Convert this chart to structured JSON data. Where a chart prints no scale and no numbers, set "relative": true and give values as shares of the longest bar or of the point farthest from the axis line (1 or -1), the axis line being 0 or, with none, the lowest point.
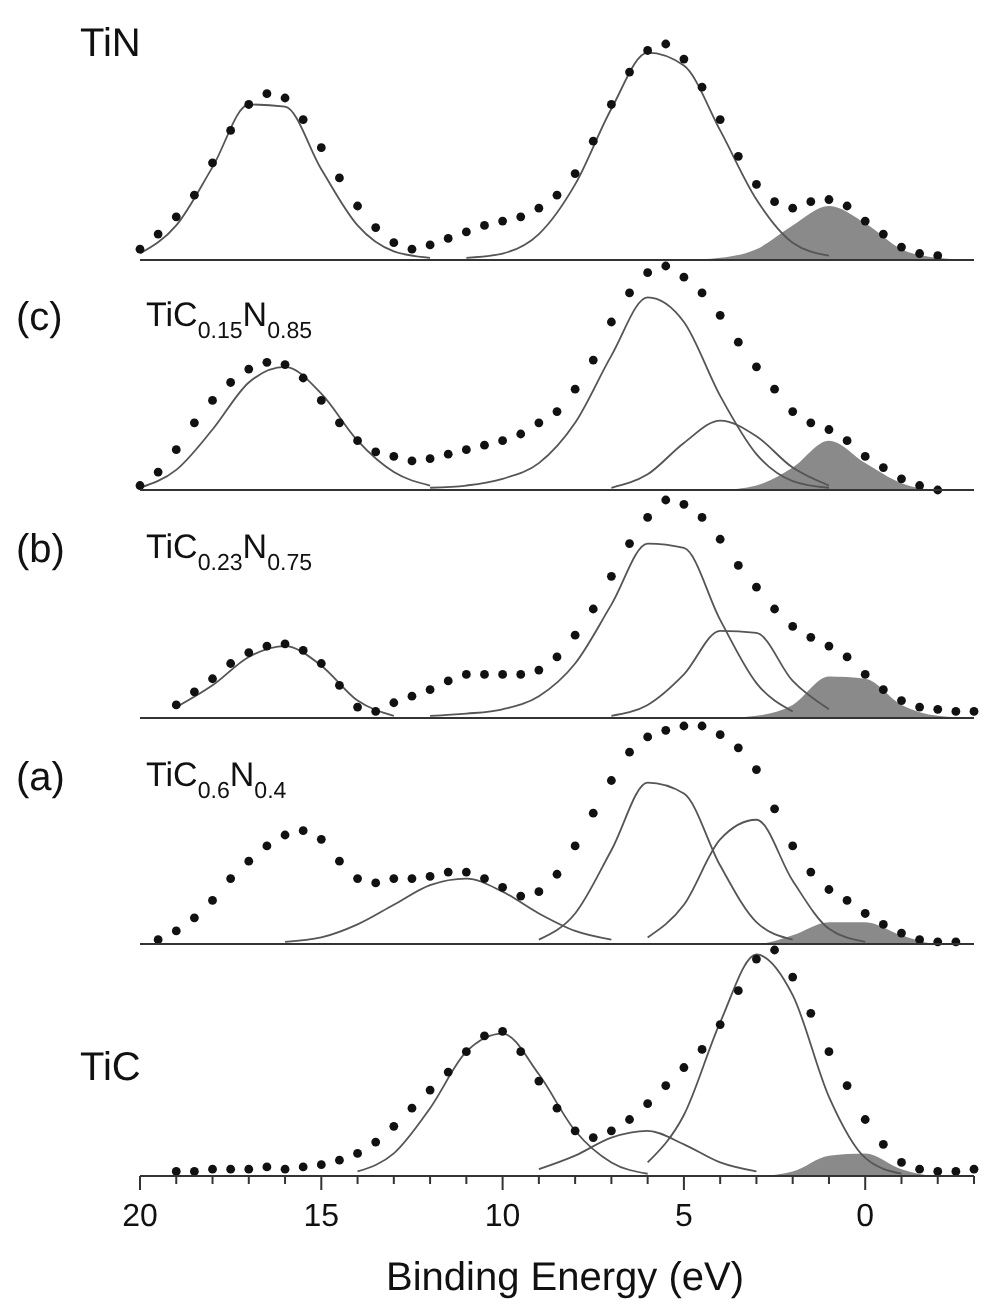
{
  "chart_data": [
    {
      "type": "line",
      "title": "TiN",
      "relative": true,
      "xlim": [
        20,
        -3
      ],
      "tick_labels": false,
      "x": [
        20,
        19,
        18,
        17,
        16,
        15,
        14,
        13,
        12,
        11,
        10,
        9,
        8,
        7,
        6,
        5,
        4,
        3,
        2,
        1,
        0,
        -1,
        -2,
        -3
      ],
      "series": [
        {
          "type": "area",
          "color": "#8a8a8a",
          "values": [
            0,
            0,
            0,
            0,
            0,
            0,
            0,
            0,
            0,
            0,
            0,
            0,
            0,
            0,
            0,
            0,
            0.01,
            0.05,
            0.16,
            0.25,
            0.17,
            0.05,
            0.01,
            0
          ]
        },
        {
          "type": "line",
          "color": "#555555",
          "values": [
            0.03,
            0.16,
            0.43,
            0.72,
            0.71,
            0.42,
            0.16,
            0.04,
            0.01,
            null,
            null,
            null,
            null,
            null,
            null,
            null,
            null,
            null,
            null,
            null,
            null,
            null,
            null,
            null
          ]
        },
        {
          "type": "line",
          "color": "#555555",
          "values": [
            null,
            null,
            null,
            null,
            null,
            null,
            null,
            null,
            null,
            0.01,
            0.03,
            0.12,
            0.35,
            0.7,
            0.96,
            0.9,
            0.6,
            0.28,
            0.08,
            0.02,
            null,
            null,
            null,
            null
          ]
        },
        {
          "type": "scatter",
          "color": "#111111",
          "marker": "circle",
          "x": [
            20,
            19.5,
            19,
            18.5,
            18,
            17.5,
            17,
            16.5,
            16,
            15.5,
            15,
            14.5,
            14,
            13.5,
            13,
            12.5,
            12,
            11.5,
            11,
            10.5,
            10,
            9.5,
            9,
            8.5,
            8,
            7.5,
            7,
            6.5,
            6,
            5.5,
            5,
            4.5,
            4,
            3.5,
            3,
            2.5,
            2,
            1.5,
            1,
            0.5,
            0,
            -0.5,
            -1,
            -1.5,
            -2
          ],
          "values": [
            0.05,
            0.12,
            0.2,
            0.3,
            0.45,
            0.6,
            0.72,
            0.77,
            0.75,
            0.65,
            0.52,
            0.38,
            0.25,
            0.15,
            0.08,
            0.05,
            0.07,
            0.1,
            0.13,
            0.16,
            0.18,
            0.2,
            0.24,
            0.3,
            0.4,
            0.55,
            0.72,
            0.87,
            0.97,
            1.0,
            0.93,
            0.8,
            0.65,
            0.48,
            0.35,
            0.27,
            0.24,
            0.27,
            0.28,
            0.25,
            0.18,
            0.12,
            0.06,
            0.03,
            0.02
          ]
        }
      ]
    },
    {
      "type": "line",
      "title": "(c)",
      "subtitle": "TiC$_{0.15}$N$_{0.85}$",
      "relative": true,
      "xlim": [
        20,
        -3
      ],
      "tick_labels": false,
      "x": [
        20,
        19,
        18,
        17,
        16,
        15,
        14,
        13,
        12,
        11,
        10,
        9,
        8,
        7,
        6,
        5,
        4,
        3,
        2,
        1,
        0,
        -1,
        -2,
        -3
      ],
      "series": [
        {
          "type": "area",
          "color": "#8a8a8a",
          "values": [
            0,
            0,
            0,
            0,
            0,
            0,
            0,
            0,
            0,
            0,
            0,
            0,
            0,
            0,
            0,
            0,
            0,
            0.02,
            0.1,
            0.22,
            0.12,
            0.03,
            0,
            0
          ]
        },
        {
          "type": "line",
          "color": "#555555",
          "values": [
            0.01,
            0.09,
            0.27,
            0.48,
            0.55,
            0.43,
            0.22,
            0.08,
            0.02,
            null,
            null,
            null,
            null,
            null,
            null,
            null,
            null,
            null,
            null,
            null,
            null,
            null,
            null,
            null
          ]
        },
        {
          "type": "line",
          "color": "#555555",
          "values": [
            null,
            null,
            null,
            null,
            null,
            null,
            null,
            null,
            0.01,
            0.02,
            0.05,
            0.12,
            0.3,
            0.6,
            0.86,
            0.75,
            0.42,
            0.16,
            0.04,
            0.01,
            null,
            null,
            null,
            null
          ]
        },
        {
          "type": "line",
          "color": "#555555",
          "values": [
            null,
            null,
            null,
            null,
            null,
            null,
            null,
            null,
            null,
            null,
            null,
            null,
            null,
            0.01,
            0.07,
            0.21,
            0.31,
            0.24,
            0.1,
            0.02,
            null,
            null,
            null,
            null
          ]
        },
        {
          "type": "scatter",
          "color": "#111111",
          "marker": "circle",
          "x": [
            20,
            19.5,
            19,
            18.5,
            18,
            17.5,
            17,
            16.5,
            16,
            15.5,
            15,
            14.5,
            14,
            13.5,
            13,
            12.5,
            12,
            11.5,
            11,
            10.5,
            10,
            9.5,
            9,
            8.5,
            8,
            7.5,
            7,
            6.5,
            6,
            5.5,
            5,
            4.5,
            4,
            3.5,
            3,
            2.5,
            2,
            1.5,
            1,
            0.5,
            0,
            -0.5,
            -1,
            -1.5,
            -2
          ],
          "values": [
            0.02,
            0.08,
            0.18,
            0.3,
            0.4,
            0.48,
            0.54,
            0.57,
            0.56,
            0.5,
            0.4,
            0.3,
            0.22,
            0.17,
            0.15,
            0.13,
            0.14,
            0.16,
            0.18,
            0.2,
            0.22,
            0.25,
            0.3,
            0.35,
            0.45,
            0.58,
            0.75,
            0.88,
            0.97,
            1.0,
            0.95,
            0.88,
            0.78,
            0.66,
            0.55,
            0.45,
            0.35,
            0.3,
            0.27,
            0.22,
            0.15,
            0.1,
            0.05,
            0.02,
            0.0
          ]
        }
      ]
    },
    {
      "type": "line",
      "title": "(b)",
      "subtitle": "TiC$_{0.23}$N$_{0.75}$",
      "relative": true,
      "xlim": [
        20,
        -3
      ],
      "tick_labels": false,
      "x": [
        20,
        19,
        18,
        17,
        16,
        15,
        14,
        13,
        12,
        11,
        10,
        9,
        8,
        7,
        6,
        5,
        4,
        3,
        2,
        1,
        0,
        -1,
        -2,
        -3
      ],
      "series": [
        {
          "type": "area",
          "color": "#8a8a8a",
          "values": [
            0,
            0,
            0,
            0,
            0,
            0,
            0,
            0,
            0,
            0,
            0,
            0,
            0,
            0,
            0,
            0,
            0,
            0.01,
            0.06,
            0.19,
            0.18,
            0.06,
            0.01,
            0
          ]
        },
        {
          "type": "line",
          "color": "#555555",
          "values": [
            null,
            0.05,
            0.15,
            0.28,
            0.33,
            0.24,
            0.08,
            0.01,
            null,
            null,
            null,
            null,
            null,
            null,
            null,
            null,
            null,
            null,
            null,
            null,
            null,
            null,
            null,
            null
          ]
        },
        {
          "type": "line",
          "color": "#555555",
          "values": [
            null,
            null,
            null,
            null,
            null,
            null,
            null,
            null,
            0.01,
            0.02,
            0.04,
            0.1,
            0.25,
            0.52,
            0.8,
            0.78,
            0.45,
            0.16,
            0.03,
            null,
            null,
            null,
            null,
            null
          ]
        },
        {
          "type": "line",
          "color": "#555555",
          "values": [
            null,
            null,
            null,
            null,
            null,
            null,
            null,
            null,
            null,
            null,
            null,
            null,
            null,
            0.01,
            0.06,
            0.2,
            0.4,
            0.39,
            0.17,
            0.04,
            null,
            null,
            null,
            null
          ]
        },
        {
          "type": "scatter",
          "color": "#111111",
          "marker": "circle",
          "x": [
            19,
            18.5,
            18,
            17.5,
            17,
            16.5,
            16,
            15.5,
            15,
            14.5,
            14,
            13.5,
            13,
            12.5,
            12,
            11.5,
            11,
            10.5,
            10,
            9.5,
            9,
            8.5,
            8,
            7.5,
            7,
            6.5,
            6,
            5.5,
            5,
            4.5,
            4,
            3.5,
            3,
            2.5,
            2,
            1.5,
            1,
            0.5,
            0,
            -0.5,
            -1,
            -1.5,
            -2,
            -2.5,
            -3
          ],
          "values": [
            0.06,
            0.12,
            0.18,
            0.25,
            0.3,
            0.33,
            0.34,
            0.31,
            0.25,
            0.15,
            0.05,
            0.03,
            0.07,
            0.1,
            0.13,
            0.17,
            0.2,
            0.2,
            0.2,
            0.2,
            0.22,
            0.28,
            0.38,
            0.5,
            0.65,
            0.8,
            0.92,
            1.0,
            0.98,
            0.92,
            0.82,
            0.7,
            0.6,
            0.5,
            0.42,
            0.37,
            0.33,
            0.28,
            0.2,
            0.13,
            0.08,
            0.05,
            0.04,
            0.03,
            0.03
          ]
        }
      ]
    },
    {
      "type": "line",
      "title": "(a)",
      "subtitle": "TiC$_{0.6}$N$_{0.4}$",
      "relative": true,
      "xlim": [
        20,
        -3
      ],
      "tick_labels": false,
      "x": [
        20,
        19,
        18,
        17,
        16,
        15,
        14,
        13,
        12,
        11,
        10,
        9,
        8,
        7,
        6,
        5,
        4,
        3,
        2,
        1,
        0,
        -1,
        -2,
        -3
      ],
      "series": [
        {
          "type": "area",
          "color": "#8a8a8a",
          "values": [
            0,
            0,
            0,
            0,
            0,
            0,
            0,
            0,
            0,
            0,
            0,
            0,
            0,
            0,
            0,
            0,
            0,
            0,
            0.04,
            0.1,
            0.1,
            0.04,
            0,
            0
          ]
        },
        {
          "type": "line",
          "color": "#555555",
          "values": [
            null,
            null,
            null,
            null,
            0.01,
            0.03,
            0.09,
            0.18,
            0.27,
            0.3,
            0.24,
            0.14,
            0.06,
            0.02,
            null,
            null,
            null,
            null,
            null,
            null,
            null,
            null,
            null,
            null
          ]
        },
        {
          "type": "line",
          "color": "#555555",
          "values": [
            null,
            null,
            null,
            null,
            null,
            null,
            null,
            null,
            null,
            null,
            null,
            0.02,
            0.14,
            0.43,
            0.74,
            0.69,
            0.36,
            0.1,
            0.02,
            null,
            null,
            null,
            null,
            null
          ]
        },
        {
          "type": "line",
          "color": "#555555",
          "values": [
            null,
            null,
            null,
            null,
            null,
            null,
            null,
            null,
            null,
            null,
            null,
            null,
            null,
            null,
            0.03,
            0.18,
            0.48,
            0.57,
            0.29,
            0.07,
            0.01,
            null,
            null,
            null
          ]
        },
        {
          "type": "scatter",
          "color": "#111111",
          "marker": "circle",
          "x": [
            19.5,
            19,
            18.5,
            18,
            17.5,
            17,
            16.5,
            16,
            15.5,
            15,
            14.5,
            14,
            13.5,
            13,
            12.5,
            12,
            11.5,
            11,
            10.5,
            10,
            9.5,
            9,
            8.5,
            8,
            7.5,
            7,
            6.5,
            6,
            5.5,
            5,
            4.5,
            4,
            3.5,
            3,
            2.5,
            2,
            1.5,
            1,
            0.5,
            0,
            -0.5,
            -1,
            -1.5,
            -2,
            -2.5
          ],
          "values": [
            0.02,
            0.06,
            0.12,
            0.2,
            0.3,
            0.38,
            0.45,
            0.5,
            0.52,
            0.48,
            0.38,
            0.3,
            0.28,
            0.3,
            0.3,
            0.31,
            0.33,
            0.33,
            0.3,
            0.26,
            0.22,
            0.24,
            0.32,
            0.45,
            0.6,
            0.75,
            0.88,
            0.95,
            0.98,
            1.0,
            1.0,
            0.96,
            0.9,
            0.8,
            0.62,
            0.45,
            0.33,
            0.25,
            0.2,
            0.14,
            0.09,
            0.05,
            0.02,
            0.01,
            0.01
          ]
        }
      ]
    },
    {
      "type": "line",
      "title": "TiC",
      "xlabel": "Binding Energy (eV)",
      "relative": true,
      "xlim": [
        20,
        -3
      ],
      "tick_labels": "x",
      "xticks": [
        20,
        {
          "value": 19,
          "label": null
        },
        {
          "value": 18,
          "label": null
        },
        {
          "value": 17,
          "label": null
        },
        {
          "value": 16,
          "label": null
        },
        15,
        {
          "value": 14,
          "label": null
        },
        {
          "value": 13,
          "label": null
        },
        {
          "value": 12,
          "label": null
        },
        {
          "value": 11,
          "label": null
        },
        10,
        {
          "value": 9,
          "label": null
        },
        {
          "value": 8,
          "label": null
        },
        {
          "value": 7,
          "label": null
        },
        {
          "value": 6,
          "label": null
        },
        5,
        {
          "value": 4,
          "label": null
        },
        {
          "value": 3,
          "label": null
        },
        {
          "value": 2,
          "label": null
        },
        {
          "value": 1,
          "label": null
        },
        0,
        {
          "value": -1,
          "label": null
        },
        {
          "value": -2,
          "label": null
        },
        {
          "value": -3,
          "label": null
        }
      ],
      "x": [
        20,
        19,
        18,
        17,
        16,
        15,
        14,
        13,
        12,
        11,
        10,
        9,
        8,
        7,
        6,
        5,
        4,
        3,
        2,
        1,
        0,
        -1,
        -2,
        -3
      ],
      "series": [
        {
          "type": "area",
          "color": "#8a8a8a",
          "values": [
            0,
            0,
            0,
            0,
            0,
            0,
            0,
            0,
            0,
            0,
            0,
            0,
            0,
            0,
            0,
            0,
            0,
            0,
            0.02,
            0.09,
            0.1,
            0.03,
            0,
            0
          ]
        },
        {
          "type": "line",
          "color": "#555555",
          "values": [
            null,
            null,
            null,
            null,
            null,
            null,
            0.02,
            0.1,
            0.3,
            0.55,
            0.63,
            0.45,
            0.2,
            0.06,
            0.01,
            null,
            null,
            null,
            null,
            null,
            null,
            null,
            null,
            null
          ]
        },
        {
          "type": "line",
          "color": "#555555",
          "values": [
            null,
            null,
            null,
            null,
            null,
            null,
            null,
            null,
            null,
            null,
            null,
            0.03,
            0.09,
            0.17,
            0.2,
            0.14,
            0.06,
            0.02,
            null,
            null,
            null,
            null,
            null,
            null
          ]
        },
        {
          "type": "line",
          "color": "#555555",
          "values": [
            null,
            null,
            null,
            null,
            null,
            null,
            null,
            null,
            null,
            null,
            null,
            null,
            null,
            null,
            0.06,
            0.27,
            0.68,
            0.98,
            0.8,
            0.35,
            0.08,
            0.01,
            null,
            null
          ]
        },
        {
          "type": "scatter",
          "color": "#111111",
          "marker": "circle",
          "x": [
            19,
            18.5,
            18,
            17.5,
            17,
            16.5,
            16,
            15.5,
            15,
            14.5,
            14,
            13.5,
            13,
            12.5,
            12,
            11.5,
            11,
            10.5,
            10,
            9.5,
            9,
            8.5,
            8,
            7.5,
            7,
            6.5,
            6,
            5.5,
            5,
            4.5,
            4,
            3.5,
            3,
            2.5,
            2,
            1.5,
            1,
            0.5,
            0,
            -0.5,
            -1,
            -1.5,
            -2,
            -2.5,
            -3
          ],
          "values": [
            0.02,
            0.02,
            0.03,
            0.03,
            0.03,
            0.04,
            0.03,
            0.04,
            0.05,
            0.07,
            0.1,
            0.15,
            0.22,
            0.3,
            0.38,
            0.46,
            0.55,
            0.62,
            0.64,
            0.55,
            0.42,
            0.3,
            0.2,
            0.17,
            0.2,
            0.25,
            0.32,
            0.4,
            0.48,
            0.56,
            0.67,
            0.82,
            0.96,
            1.0,
            0.88,
            0.72,
            0.55,
            0.4,
            0.25,
            0.14,
            0.06,
            0.03,
            0.02,
            0.02,
            0.03
          ]
        }
      ]
    }
  ]
}
